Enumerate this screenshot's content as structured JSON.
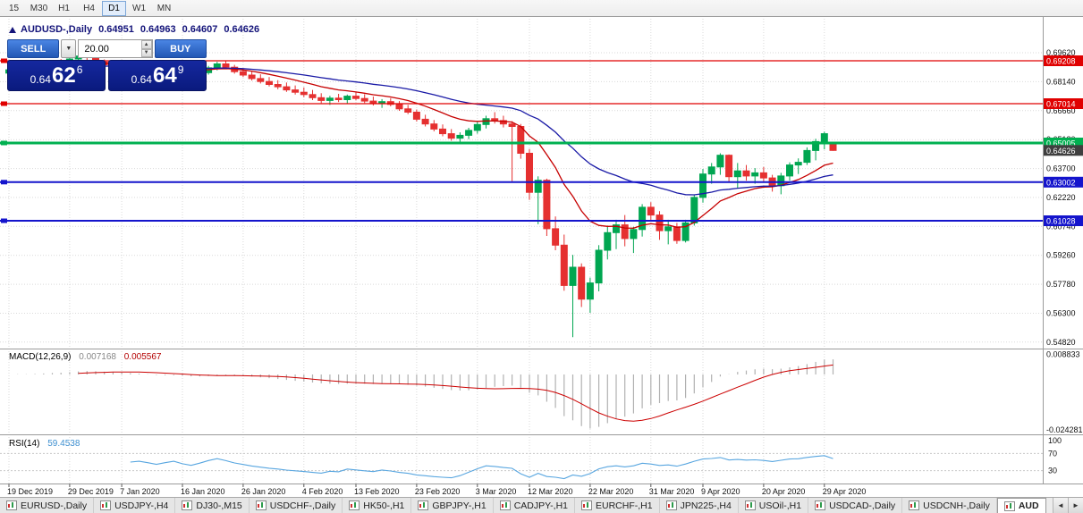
{
  "toolbar": {
    "timeframes": [
      "15",
      "M30",
      "H1",
      "H4",
      "D1",
      "W1",
      "MN"
    ],
    "active": "D1"
  },
  "chart": {
    "symbol_title": "AUDUSD-,Daily",
    "open": "0.64951",
    "high": "0.64963",
    "low": "0.64607",
    "close": "0.64626"
  },
  "trade_panel": {
    "sell_label": "SELL",
    "buy_label": "BUY",
    "volume_value": "20.00",
    "bid": {
      "prefix": "0.64",
      "pips": "62",
      "point": "6"
    },
    "ask": {
      "prefix": "0.64",
      "pips": "64",
      "point": "9"
    },
    "icons": {
      "dropdown": "▼",
      "spin_up": "▲",
      "spin_down": "▼"
    }
  },
  "chart_data": {
    "type": "candlestick",
    "symbol": "AUDUSD-",
    "timeframe": "Daily",
    "bull_color": "#00a651",
    "bear_color": "#e53030",
    "y_axis_labels": [
      "0.69620",
      "0.68140",
      "0.66660",
      "0.65180",
      "0.63700",
      "0.62220",
      "0.60740",
      "0.59260",
      "0.57780",
      "0.56300",
      "0.54820"
    ],
    "x_ticks": [
      {
        "bar": 0,
        "label": "19 Dec 2019"
      },
      {
        "bar": 7,
        "label": "29 Dec 2019"
      },
      {
        "bar": 13,
        "label": "7 Jan 2020"
      },
      {
        "bar": 20,
        "label": "16 Jan 2020"
      },
      {
        "bar": 27,
        "label": "26 Jan 2020"
      },
      {
        "bar": 34,
        "label": "4 Feb 2020"
      },
      {
        "bar": 40,
        "label": "13 Feb 2020"
      },
      {
        "bar": 47,
        "label": "23 Feb 2020"
      },
      {
        "bar": 54,
        "label": "3 Mar 2020"
      },
      {
        "bar": 60,
        "label": "12 Mar 2020"
      },
      {
        "bar": 67,
        "label": "22 Mar 2020"
      },
      {
        "bar": 74,
        "label": "31 Mar 2020"
      },
      {
        "bar": 80,
        "label": "9 Apr 2020"
      },
      {
        "bar": 87,
        "label": "20 Apr 2020"
      },
      {
        "bar": 94,
        "label": "29 Apr 2020"
      }
    ],
    "hlines": [
      {
        "value": 0.69208,
        "label": "0.69208",
        "color": "#e00000",
        "width": 1.2
      },
      {
        "value": 0.67014,
        "label": "0.67014",
        "color": "#e00000",
        "width": 1.2
      },
      {
        "value": 0.65005,
        "label": "0.65005",
        "color": "#00b050",
        "width": 3
      },
      {
        "value": 0.63002,
        "label": "0.63002",
        "color": "#1414cc",
        "width": 2
      },
      {
        "value": 0.61028,
        "label": "0.61028",
        "color": "#1414cc",
        "width": 2
      }
    ],
    "current_price": {
      "value": 0.64626,
      "label": "0.64626",
      "color": "#3f3f3f"
    },
    "moving_averages": [
      {
        "name": "ma-fast",
        "period": 13,
        "color": "#c60000"
      },
      {
        "name": "ma-slow",
        "period": 34,
        "color": "#1a1aa6"
      }
    ],
    "macd": {
      "label": "MACD(12,26,9)",
      "main_value": "0.007168",
      "signal_value": "0.005567",
      "axis_labels": [
        "0.008833",
        "-0.024281"
      ],
      "histogram_color": "#b0b0b0",
      "signal_color": "#cc0000"
    },
    "rsi": {
      "label": "RSI(14)",
      "value": "59.4538",
      "axis_labels": [
        "100",
        "70",
        "30"
      ],
      "levels": [
        70,
        30
      ],
      "color": "#58a6e0"
    },
    "candles": [
      [
        0.6858,
        0.6885,
        0.6845,
        0.6875
      ],
      [
        0.6875,
        0.6895,
        0.686,
        0.6888
      ],
      [
        0.6888,
        0.6905,
        0.687,
        0.688
      ],
      [
        0.688,
        0.6898,
        0.6862,
        0.6892
      ],
      [
        0.6892,
        0.6915,
        0.688,
        0.6908
      ],
      [
        0.6908,
        0.6925,
        0.689,
        0.6918
      ],
      [
        0.6918,
        0.693,
        0.69,
        0.691
      ],
      [
        0.691,
        0.6938,
        0.6898,
        0.693
      ],
      [
        0.693,
        0.695,
        0.6915,
        0.6945
      ],
      [
        0.6945,
        0.696,
        0.6925,
        0.6938
      ],
      [
        0.6938,
        0.6945,
        0.6905,
        0.6915
      ],
      [
        0.6915,
        0.6928,
        0.6888,
        0.69
      ],
      [
        0.69,
        0.6918,
        0.6885,
        0.6912
      ],
      [
        0.6912,
        0.692,
        0.6878,
        0.689
      ],
      [
        0.689,
        0.6905,
        0.6865,
        0.6875
      ],
      [
        0.6875,
        0.6892,
        0.6855,
        0.6882
      ],
      [
        0.6882,
        0.6898,
        0.686,
        0.687
      ],
      [
        0.687,
        0.6885,
        0.684,
        0.6855
      ],
      [
        0.6855,
        0.6878,
        0.6845,
        0.6868
      ],
      [
        0.6868,
        0.689,
        0.6852,
        0.688
      ],
      [
        0.688,
        0.6895,
        0.6848,
        0.6858
      ],
      [
        0.6858,
        0.6872,
        0.683,
        0.6842
      ],
      [
        0.6842,
        0.6868,
        0.6825,
        0.686
      ],
      [
        0.686,
        0.6895,
        0.685,
        0.6885
      ],
      [
        0.6885,
        0.6916,
        0.6872,
        0.6905
      ],
      [
        0.6905,
        0.692,
        0.6878,
        0.6888
      ],
      [
        0.6888,
        0.69,
        0.6855,
        0.6865
      ],
      [
        0.6865,
        0.6882,
        0.6838,
        0.6848
      ],
      [
        0.6848,
        0.6865,
        0.682,
        0.683
      ],
      [
        0.683,
        0.6852,
        0.6805,
        0.6815
      ],
      [
        0.6815,
        0.6838,
        0.679,
        0.68
      ],
      [
        0.68,
        0.6822,
        0.6775,
        0.6788
      ],
      [
        0.6788,
        0.681,
        0.6762,
        0.6772
      ],
      [
        0.6772,
        0.6795,
        0.6748,
        0.676
      ],
      [
        0.676,
        0.6785,
        0.6735,
        0.6748
      ],
      [
        0.6748,
        0.6772,
        0.672,
        0.6732
      ],
      [
        0.6732,
        0.6755,
        0.6705,
        0.6718
      ],
      [
        0.6718,
        0.6742,
        0.6695,
        0.673
      ],
      [
        0.673,
        0.6752,
        0.671,
        0.6722
      ],
      [
        0.6722,
        0.6748,
        0.67,
        0.674
      ],
      [
        0.674,
        0.6762,
        0.6718,
        0.6728
      ],
      [
        0.6728,
        0.675,
        0.6705,
        0.6715
      ],
      [
        0.6715,
        0.6738,
        0.6692,
        0.6702
      ],
      [
        0.6702,
        0.6725,
        0.668,
        0.6712
      ],
      [
        0.6712,
        0.673,
        0.6688,
        0.6698
      ],
      [
        0.6698,
        0.6715,
        0.6665,
        0.6675
      ],
      [
        0.6675,
        0.6695,
        0.6648,
        0.6658
      ],
      [
        0.6658,
        0.6672,
        0.661,
        0.6622
      ],
      [
        0.6622,
        0.6645,
        0.6585,
        0.6598
      ],
      [
        0.6598,
        0.6618,
        0.656,
        0.6572
      ],
      [
        0.6572,
        0.6595,
        0.6535,
        0.6548
      ],
      [
        0.6548,
        0.6572,
        0.6512,
        0.6525
      ],
      [
        0.6525,
        0.6555,
        0.6495,
        0.654
      ],
      [
        0.654,
        0.6578,
        0.652,
        0.6565
      ],
      [
        0.6565,
        0.661,
        0.6548,
        0.6595
      ],
      [
        0.6595,
        0.664,
        0.6575,
        0.6625
      ],
      [
        0.6625,
        0.6658,
        0.66,
        0.6615
      ],
      [
        0.6615,
        0.664,
        0.658,
        0.6598
      ],
      [
        0.6598,
        0.6612,
        0.6305,
        0.6585
      ],
      [
        0.6585,
        0.6598,
        0.642,
        0.6448
      ],
      [
        0.6448,
        0.647,
        0.621,
        0.6248
      ],
      [
        0.6248,
        0.633,
        0.6085,
        0.631
      ],
      [
        0.631,
        0.6318,
        0.6025,
        0.6062
      ],
      [
        0.6062,
        0.6125,
        0.5952,
        0.5978
      ],
      [
        0.5978,
        0.6032,
        0.5745,
        0.5772
      ],
      [
        0.5772,
        0.5928,
        0.5508,
        0.5865
      ],
      [
        0.5865,
        0.5885,
        0.5662,
        0.5702
      ],
      [
        0.5702,
        0.5812,
        0.5632,
        0.5785
      ],
      [
        0.5785,
        0.5978,
        0.5742,
        0.5952
      ],
      [
        0.5952,
        0.6078,
        0.5905,
        0.6042
      ],
      [
        0.6042,
        0.6108,
        0.5958,
        0.6082
      ],
      [
        0.6082,
        0.6132,
        0.5972,
        0.6012
      ],
      [
        0.6012,
        0.6072,
        0.5938,
        0.6058
      ],
      [
        0.6058,
        0.6188,
        0.6022,
        0.6172
      ],
      [
        0.6172,
        0.6198,
        0.6102,
        0.6132
      ],
      [
        0.6132,
        0.6152,
        0.6005,
        0.6052
      ],
      [
        0.6052,
        0.6108,
        0.5982,
        0.6072
      ],
      [
        0.6072,
        0.6092,
        0.5985,
        0.6002
      ],
      [
        0.6002,
        0.6108,
        0.5992,
        0.6092
      ],
      [
        0.6092,
        0.6235,
        0.6078,
        0.6222
      ],
      [
        0.6222,
        0.6368,
        0.6195,
        0.6342
      ],
      [
        0.6342,
        0.6398,
        0.6292,
        0.6378
      ],
      [
        0.6378,
        0.6448,
        0.6338,
        0.6438
      ],
      [
        0.6438,
        0.6442,
        0.6302,
        0.6328
      ],
      [
        0.6328,
        0.6398,
        0.6268,
        0.6358
      ],
      [
        0.6358,
        0.6388,
        0.6308,
        0.6332
      ],
      [
        0.6332,
        0.6372,
        0.6292,
        0.6348
      ],
      [
        0.6348,
        0.6378,
        0.6302,
        0.6322
      ],
      [
        0.6322,
        0.6338,
        0.6252,
        0.6282
      ],
      [
        0.6282,
        0.6348,
        0.6238,
        0.6332
      ],
      [
        0.6332,
        0.6402,
        0.6308,
        0.6388
      ],
      [
        0.6388,
        0.6422,
        0.6342,
        0.6402
      ],
      [
        0.6402,
        0.6478,
        0.6388,
        0.6462
      ],
      [
        0.6462,
        0.6522,
        0.6412,
        0.6508
      ],
      [
        0.6508,
        0.6558,
        0.6468,
        0.6548
      ],
      [
        0.64951,
        0.64963,
        0.64607,
        0.64626
      ]
    ]
  },
  "tab_bar": {
    "tabs": [
      "EURUSD-,Daily",
      "USDJPY-,H4",
      "DJ30-,M15",
      "USDCHF-,Daily",
      "HK50-,H1",
      "GBPJPY-,H1",
      "CADJPY-,H1",
      "EURCHF-,H1",
      "JPN225-,H4",
      "USOil-,H1",
      "USDCAD-,Daily",
      "USDCNH-,Daily"
    ],
    "active_tab": "AUD",
    "scroll_left_icon": "◄",
    "scroll_right_icon": "►"
  }
}
